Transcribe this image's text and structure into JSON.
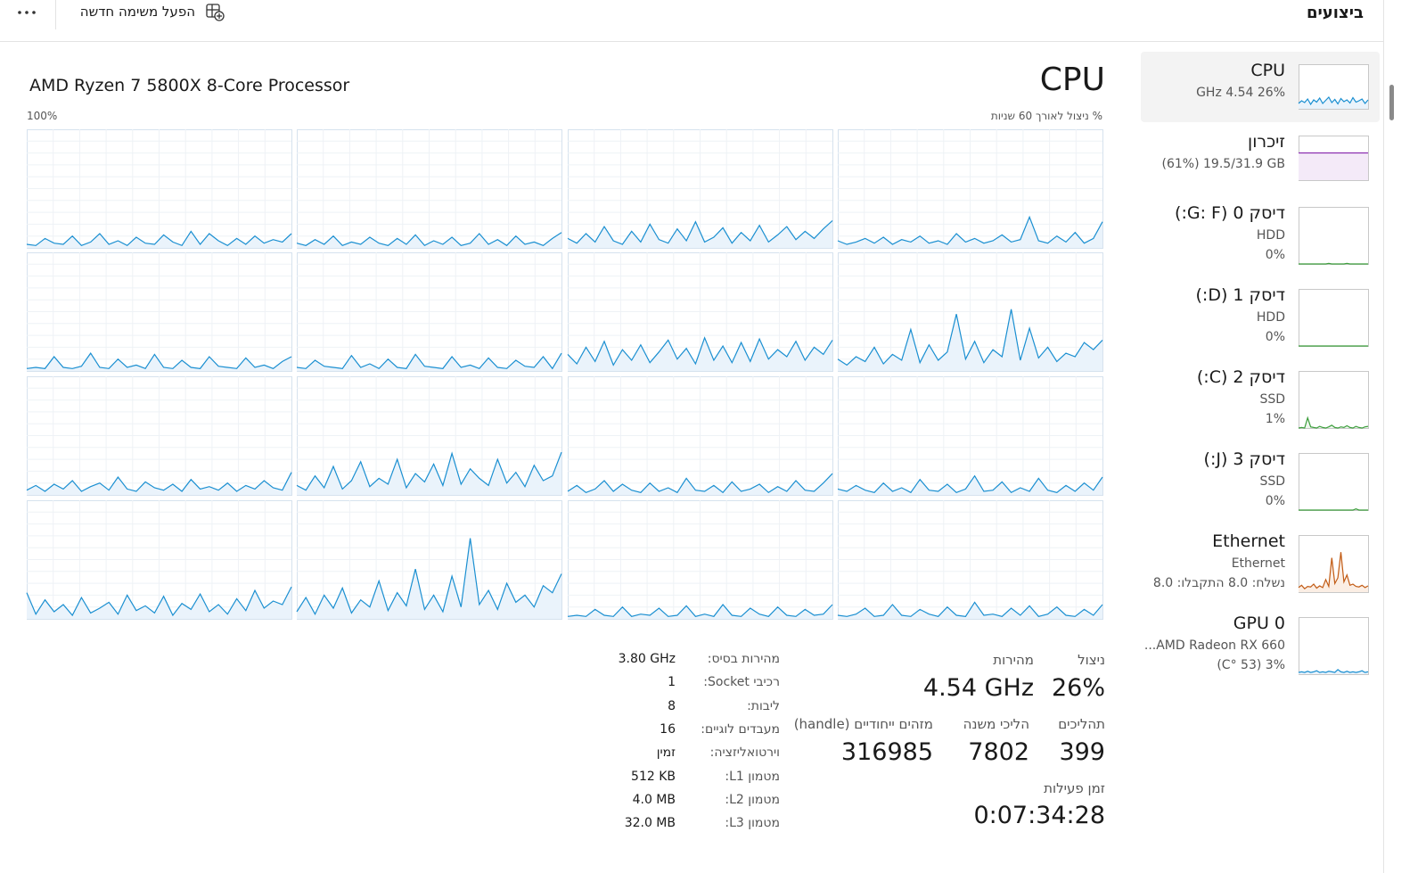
{
  "header": {
    "title": "ביצועים",
    "new_task": "הפעל משימה חדשה"
  },
  "cpu": {
    "title": "CPU",
    "model": "AMD Ryzen 7 5800X 8-Core Processor",
    "util_label": "% ניצול לאורך 60 שניות",
    "max_label": "100%",
    "cores": [
      [
        3,
        2,
        8,
        4,
        3,
        10,
        2,
        5,
        12,
        3,
        6,
        2,
        9,
        4,
        3,
        11,
        5,
        2,
        14,
        3,
        12,
        6,
        2,
        8,
        3,
        10,
        4,
        7,
        5,
        12
      ],
      [
        4,
        2,
        7,
        3,
        10,
        2,
        5,
        3,
        9,
        4,
        2,
        8,
        3,
        11,
        2,
        6,
        3,
        9,
        2,
        4,
        12,
        3,
        7,
        2,
        10,
        3,
        5,
        2,
        8,
        13
      ],
      [
        8,
        4,
        12,
        5,
        18,
        6,
        3,
        14,
        5,
        20,
        7,
        4,
        16,
        6,
        22,
        5,
        9,
        17,
        4,
        13,
        6,
        19,
        5,
        11,
        18,
        7,
        14,
        8,
        16,
        23
      ],
      [
        6,
        3,
        5,
        8,
        4,
        9,
        3,
        7,
        5,
        10,
        4,
        6,
        3,
        12,
        5,
        8,
        4,
        6,
        11,
        5,
        7,
        26,
        6,
        4,
        10,
        5,
        13,
        4,
        8,
        22
      ],
      [
        2,
        3,
        2,
        12,
        3,
        2,
        4,
        15,
        3,
        2,
        10,
        3,
        5,
        2,
        14,
        3,
        2,
        9,
        3,
        2,
        12,
        4,
        3,
        2,
        11,
        3,
        5,
        2,
        8,
        12
      ],
      [
        3,
        2,
        9,
        4,
        3,
        2,
        13,
        3,
        6,
        2,
        10,
        3,
        2,
        14,
        4,
        3,
        2,
        12,
        3,
        5,
        2,
        11,
        3,
        2,
        9,
        4,
        3,
        12,
        2,
        15
      ],
      [
        14,
        6,
        20,
        8,
        25,
        5,
        18,
        9,
        22,
        7,
        16,
        26,
        10,
        19,
        6,
        28,
        9,
        21,
        7,
        24,
        8,
        27,
        10,
        18,
        12,
        25,
        9,
        20,
        14,
        26
      ],
      [
        10,
        5,
        12,
        8,
        20,
        6,
        14,
        9,
        35,
        7,
        22,
        9,
        16,
        48,
        10,
        25,
        7,
        18,
        12,
        52,
        9,
        36,
        11,
        20,
        8,
        15,
        12,
        24,
        18,
        26
      ],
      [
        4,
        8,
        3,
        9,
        5,
        12,
        3,
        7,
        10,
        4,
        15,
        5,
        3,
        11,
        6,
        4,
        9,
        3,
        13,
        5,
        7,
        4,
        10,
        3,
        8,
        5,
        12,
        6,
        4,
        19
      ],
      [
        8,
        4,
        16,
        6,
        24,
        5,
        12,
        28,
        7,
        14,
        9,
        30,
        6,
        18,
        11,
        26,
        8,
        35,
        9,
        22,
        14,
        8,
        30,
        10,
        19,
        7,
        25,
        12,
        16,
        36
      ],
      [
        3,
        8,
        2,
        5,
        12,
        3,
        9,
        4,
        2,
        10,
        3,
        6,
        2,
        14,
        4,
        3,
        8,
        2,
        11,
        3,
        5,
        9,
        2,
        7,
        3,
        12,
        4,
        3,
        10,
        18
      ],
      [
        5,
        3,
        8,
        4,
        2,
        10,
        3,
        6,
        2,
        13,
        4,
        3,
        9,
        2,
        5,
        16,
        3,
        4,
        11,
        2,
        6,
        3,
        14,
        4,
        2,
        8,
        3,
        10,
        4,
        15
      ],
      [
        22,
        4,
        16,
        6,
        12,
        3,
        18,
        5,
        9,
        14,
        4,
        20,
        7,
        11,
        5,
        19,
        3,
        13,
        8,
        21,
        6,
        12,
        4,
        17,
        7,
        24,
        9,
        15,
        12,
        27
      ],
      [
        6,
        18,
        4,
        20,
        9,
        26,
        5,
        16,
        10,
        32,
        7,
        22,
        11,
        42,
        8,
        20,
        6,
        36,
        10,
        68,
        12,
        24,
        8,
        30,
        14,
        20,
        10,
        28,
        22,
        38
      ],
      [
        2,
        3,
        2,
        8,
        3,
        2,
        10,
        2,
        4,
        3,
        9,
        2,
        3,
        11,
        2,
        4,
        2,
        12,
        3,
        2,
        9,
        4,
        2,
        10,
        3,
        2,
        8,
        3,
        4,
        12
      ],
      [
        3,
        2,
        4,
        9,
        2,
        3,
        12,
        3,
        2,
        8,
        4,
        2,
        10,
        3,
        2,
        14,
        3,
        4,
        2,
        9,
        3,
        11,
        2,
        4,
        10,
        3,
        2,
        8,
        3,
        12
      ]
    ]
  },
  "stats": {
    "util_label": "ניצול",
    "util": "26%",
    "speed_label": "מהירות",
    "speed": "4.54 GHz",
    "proc_label": "תהליכים",
    "proc": 399,
    "threads_label": "הליכי משנה",
    "threads": 7802,
    "handles_label": "מזהים ייחודיים (handle)",
    "handles": 316985,
    "uptime_label": "זמן פעילות",
    "uptime": "0:07:34:28"
  },
  "specs": {
    "rows": [
      [
        "מהירות בסיס:",
        "3.80 GHz"
      ],
      [
        "רכיבי Socket:",
        1
      ],
      [
        "ליבות:",
        8
      ],
      [
        "מעבדים לוגיים:",
        16
      ],
      [
        "וירטואליזציה:",
        "זמין"
      ],
      [
        "מטמון L1:",
        "512 KB"
      ],
      [
        "מטמון L2:",
        "4.0 MB"
      ],
      [
        "מטמון L3:",
        "32.0 MB"
      ]
    ]
  },
  "sidebar": [
    {
      "name": "CPU",
      "lines": [
        "26% 4.54 GHz"
      ],
      "graph": [
        12,
        18,
        14,
        22,
        10,
        20,
        15,
        24,
        12,
        19,
        26,
        14,
        21,
        11,
        23,
        16,
        20,
        13,
        25,
        15,
        18,
        22,
        12,
        20
      ]
    },
    {
      "name": "זיכרון",
      "lines": [
        "(61%) 19.5/31.9 GB"
      ],
      "graph": [
        61,
        61,
        61,
        61,
        61,
        61,
        61,
        61,
        61,
        61,
        61,
        61,
        61,
        61,
        61,
        61,
        61,
        61,
        61,
        61,
        61,
        61,
        61,
        61
      ]
    },
    {
      "name": "דיסק 0 (G: F:)",
      "lines": [
        "HDD",
        "0%"
      ],
      "graph": [
        0,
        0,
        0,
        0,
        0,
        0,
        0,
        0,
        0,
        0,
        1,
        0,
        0,
        0,
        0,
        0,
        1,
        0,
        0,
        0,
        0,
        0,
        0,
        0
      ]
    },
    {
      "name": "דיסק 1 (D:)",
      "lines": [
        "HDD",
        "0%"
      ],
      "graph": [
        0,
        0,
        0,
        0,
        0,
        0,
        0,
        0,
        0,
        0,
        0,
        0,
        0,
        0,
        0,
        0,
        0,
        0,
        0,
        0,
        0,
        0,
        0,
        0
      ]
    },
    {
      "name": "דיסק 2 (C:)",
      "lines": [
        "SSD",
        "1%"
      ],
      "graph": [
        0,
        1,
        0,
        18,
        2,
        1,
        0,
        3,
        1,
        0,
        2,
        5,
        1,
        0,
        2,
        1,
        4,
        1,
        0,
        3,
        1,
        0,
        2,
        3
      ]
    },
    {
      "name": "דיסק 3 (J:)",
      "lines": [
        "SSD",
        "0%"
      ],
      "graph": [
        0,
        0,
        0,
        0,
        0,
        0,
        0,
        0,
        0,
        0,
        0,
        0,
        0,
        0,
        0,
        0,
        0,
        0,
        0,
        2,
        0,
        0,
        0,
        0
      ]
    },
    {
      "name": "Ethernet",
      "lines": [
        "Ethernet",
        "נשלח: 8.0 התקבלו: 8.0"
      ],
      "graph": [
        8,
        12,
        6,
        10,
        9,
        14,
        7,
        11,
        8,
        22,
        10,
        60,
        15,
        25,
        70,
        18,
        30,
        12,
        14,
        10,
        9,
        12,
        8,
        11
      ]
    },
    {
      "name": "GPU 0",
      "lines": [
        "AMD Radeon RX 660...",
        "3% (53 °C)"
      ],
      "graph": [
        3,
        4,
        3,
        5,
        3,
        4,
        6,
        3,
        4,
        3,
        5,
        4,
        3,
        8,
        4,
        3,
        5,
        3,
        4,
        3,
        4,
        6,
        3,
        4
      ]
    }
  ]
}
